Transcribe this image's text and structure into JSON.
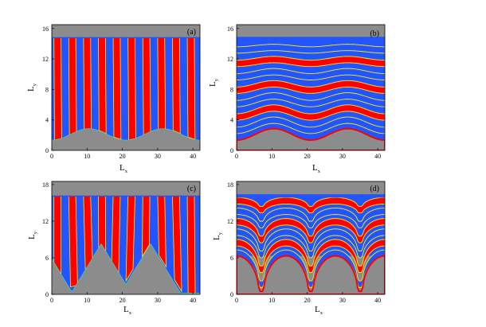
{
  "figure": {
    "panels": [
      {
        "label": "(a)",
        "xlabel": "L",
        "xlabel_sub": "x",
        "ylabel": "L",
        "ylabel_sub": "y",
        "xticks": [
          "0",
          "10",
          "20",
          "30",
          "40"
        ],
        "yticks": [
          "0",
          "4",
          "8",
          "12",
          "16"
        ],
        "xlim": [
          0,
          42
        ],
        "ylim": [
          0,
          16.5
        ],
        "pattern": "vertical lamellae",
        "substrate": "sinusoidal",
        "film_top": 14.8
      },
      {
        "label": "(b)",
        "xlabel": "L",
        "xlabel_sub": "x",
        "ylabel": "L",
        "ylabel_sub": "y",
        "xticks": [
          "0",
          "10",
          "20",
          "30",
          "40"
        ],
        "yticks": [
          "0",
          "4",
          "8",
          "12",
          "16"
        ],
        "xlim": [
          0,
          42
        ],
        "ylim": [
          0,
          16.5
        ],
        "pattern": "parallel lamellae following substrate",
        "substrate": "sinusoidal",
        "film_top": 14.6
      },
      {
        "label": "(c)",
        "xlabel": "L",
        "xlabel_sub": "x",
        "ylabel": "L",
        "ylabel_sub": "y",
        "xticks": [
          "0",
          "10",
          "20",
          "30",
          "40"
        ],
        "yticks": [
          "0",
          "6",
          "12",
          "18"
        ],
        "xlim": [
          0,
          42
        ],
        "ylim": [
          0,
          18.5
        ],
        "pattern": "vertical lamellae",
        "substrate": "triangular",
        "film_top": 16.1
      },
      {
        "label": "(d)",
        "xlabel": "L",
        "xlabel_sub": "x",
        "ylabel": "L",
        "ylabel_sub": "y",
        "xticks": [
          "0",
          "10",
          "20",
          "30",
          "40"
        ],
        "yticks": [
          "0",
          "6",
          "12",
          "18"
        ],
        "xlim": [
          0,
          42
        ],
        "ylim": [
          0,
          18.5
        ],
        "pattern": "parallel lamellae with defects",
        "substrate": "bumps",
        "film_top": 16.1
      }
    ],
    "colors": {
      "red": "#ff0000",
      "blue": "#2255ff",
      "yellow": "#ffee00",
      "cyan": "#33ddcc",
      "substrate": "#8c8c8c",
      "axis": "#000000"
    }
  }
}
